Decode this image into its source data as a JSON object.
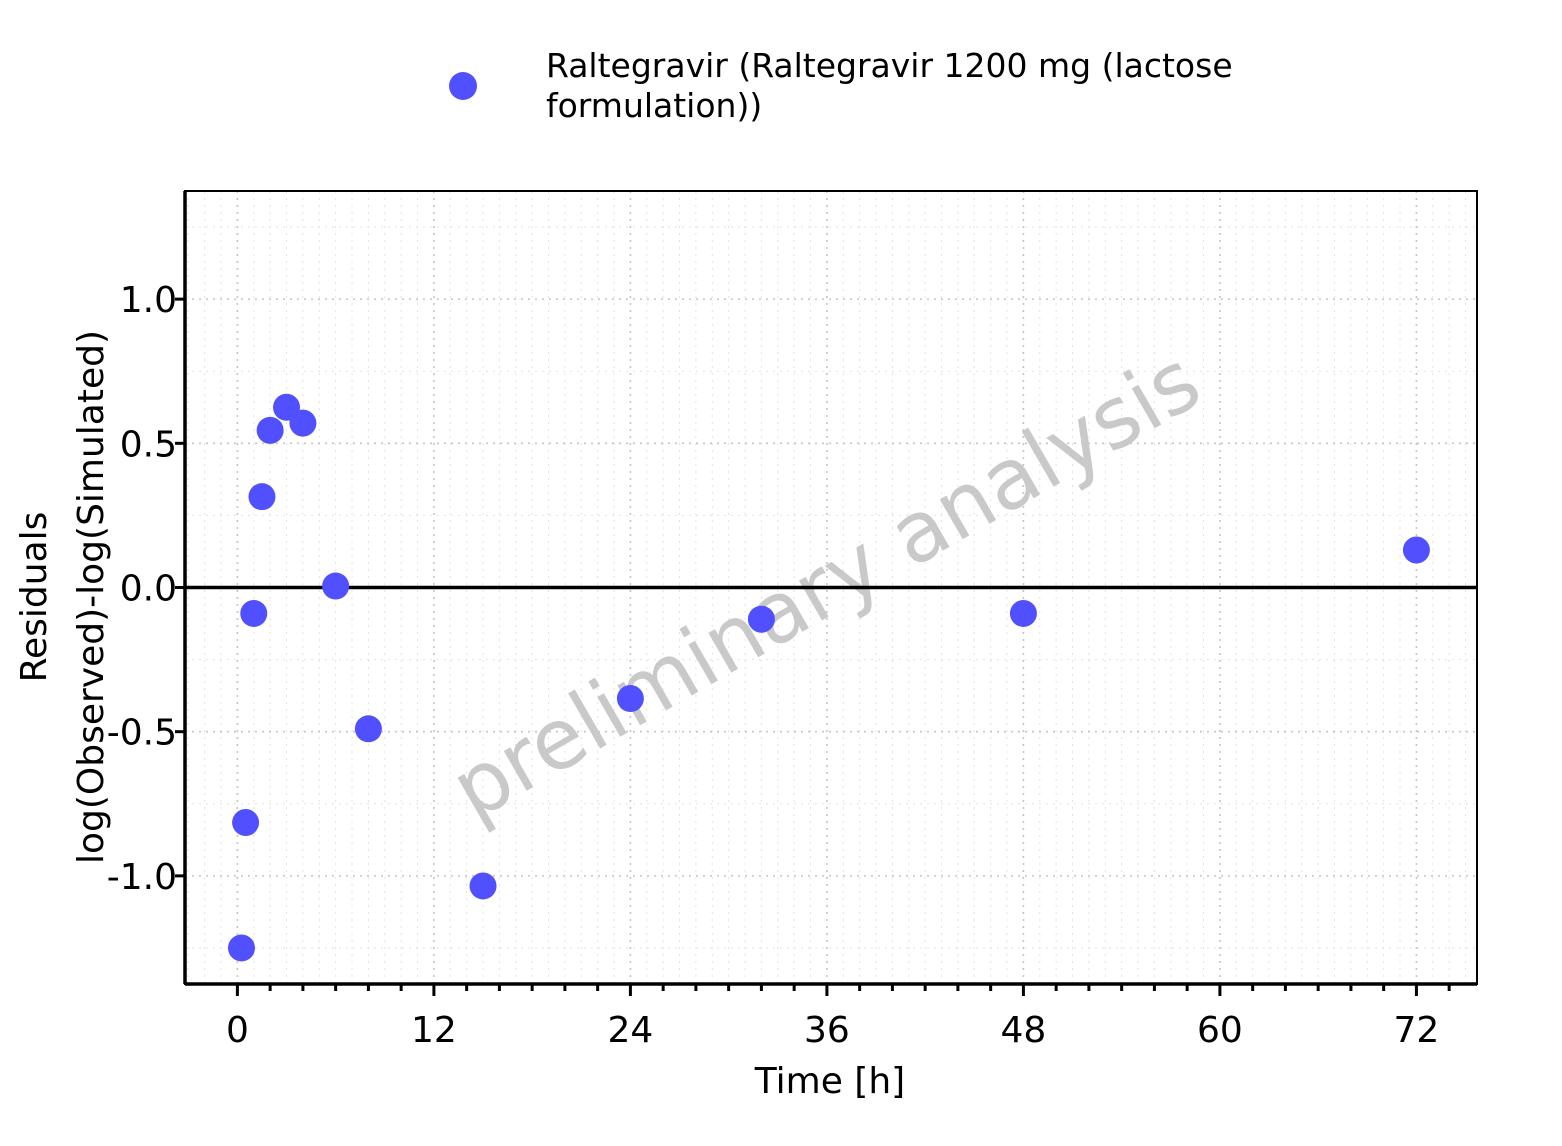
{
  "chart_data": {
    "type": "scatter",
    "xlabel": "Time [h]",
    "ylabel_line1": "Residuals",
    "ylabel_line2": "log(Observed)-log(Simulated)",
    "xlim": [
      -3.2,
      75.7
    ],
    "ylim": [
      -1.375,
      1.375
    ],
    "x_ticks": [
      0,
      12,
      24,
      36,
      48,
      60,
      72
    ],
    "x_tick_labels": [
      "0",
      "12",
      "24",
      "36",
      "48",
      "60",
      "72"
    ],
    "y_ticks": [
      1.0,
      0.5,
      0.0,
      -0.5,
      -1.0
    ],
    "y_tick_labels": [
      "1.0",
      "0.5",
      "0.0",
      "-0.5",
      "-1.0"
    ],
    "reference_line_y": 0,
    "grid": true,
    "legend_position": "top",
    "watermark": "preliminary analysis",
    "series": [
      {
        "name": "Raltegravir (Raltegravir 1200 mg (lactose formulation))",
        "legend_lines": [
          "Raltegravir (Raltegravir 1200 mg (lactose",
          "formulation))"
        ],
        "color": "#5050FF",
        "x": [
          0.25,
          0.5,
          1.0,
          1.5,
          2.0,
          3.0,
          4.0,
          6.0,
          8.0,
          15.0,
          24.0,
          32.0,
          48.0,
          72.0
        ],
        "y": [
          -1.25,
          -0.815,
          -0.09,
          0.315,
          0.545,
          0.625,
          0.57,
          0.005,
          -0.49,
          -1.035,
          -0.385,
          -0.11,
          -0.09,
          0.13
        ]
      }
    ]
  }
}
